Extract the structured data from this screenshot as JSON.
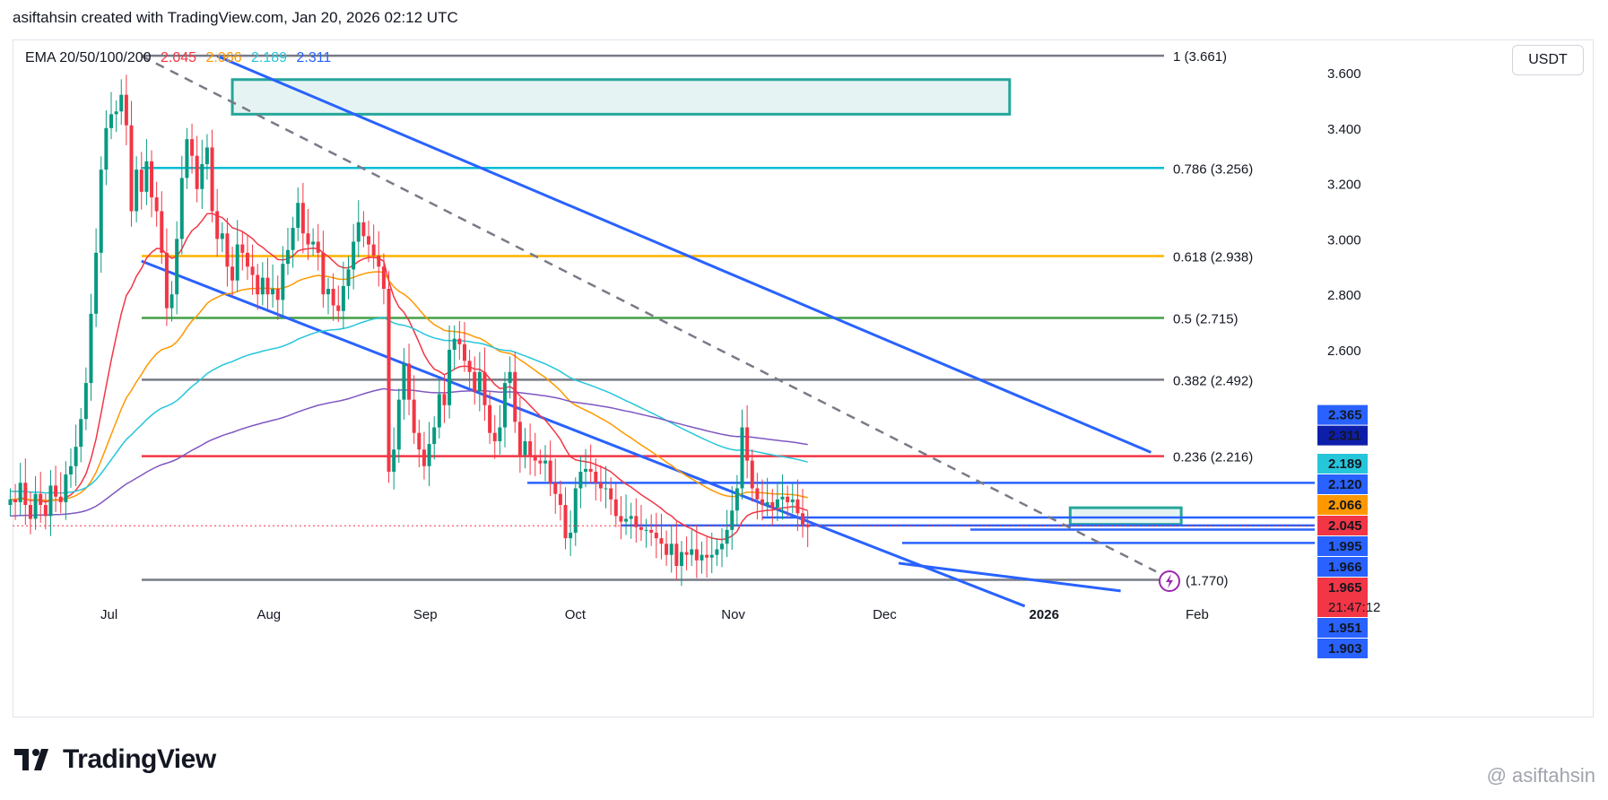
{
  "header": {
    "attribution": "asiftahsin created with TradingView.com, Jan 20, 2026 02:12 UTC"
  },
  "legend": {
    "label": "EMA 20/50/100/200",
    "values": [
      {
        "text": "2.045",
        "color": "#f23645"
      },
      {
        "text": "2.066",
        "color": "#ff9800"
      },
      {
        "text": "2.189",
        "color": "#26c6da"
      },
      {
        "text": "2.311",
        "color": "#2962ff"
      }
    ]
  },
  "currency": "USDT",
  "branding": {
    "logo_text": "TradingView",
    "watermark": "@ asiftahsin"
  },
  "chart_data": {
    "type": "candlestick",
    "ylim": [
      1.7,
      3.72
    ],
    "y_ticks": [
      2.6,
      2.8,
      3.0,
      3.2,
      3.4,
      3.6
    ],
    "x_tick_labels": [
      {
        "label": "Jul",
        "day": 0
      },
      {
        "label": "Aug",
        "day": 31
      },
      {
        "label": "Sep",
        "day": 62
      },
      {
        "label": "Oct",
        "day": 92
      },
      {
        "label": "Nov",
        "day": 123
      },
      {
        "label": "Dec",
        "day": 153
      },
      {
        "label": "2026",
        "day": 184
      },
      {
        "label": "Feb",
        "day": 215
      }
    ],
    "fib_levels": [
      {
        "ratio": "1",
        "value": 3.661,
        "text": "1 (3.661)",
        "color": "#787b86"
      },
      {
        "ratio": "0.786",
        "value": 3.256,
        "text": "0.786 (3.256)",
        "color": "#00bcd4"
      },
      {
        "ratio": "0.618",
        "value": 2.938,
        "text": "0.618 (2.938)",
        "color": "#ffb300"
      },
      {
        "ratio": "0.5",
        "value": 2.715,
        "text": "0.5 (2.715)",
        "color": "#43a047"
      },
      {
        "ratio": "0.382",
        "value": 2.492,
        "text": "0.382 (2.492)",
        "color": "#787b86"
      },
      {
        "ratio": "0.236",
        "value": 2.216,
        "text": "0.236 (2.216)",
        "color": "#f23645"
      },
      {
        "ratio": "0",
        "value": 1.77,
        "text": "(1.770)",
        "color": "#787b86"
      }
    ],
    "price_badges": [
      {
        "text": "2.365",
        "value": 2.365,
        "color": "#2962ff"
      },
      {
        "text": "2.311",
        "value": 2.311,
        "color": "#0d1eab"
      },
      {
        "text": "2.189",
        "value": 2.189,
        "color": "#26c6da"
      },
      {
        "text": "2.120",
        "value": 2.12,
        "color": "#2962ff"
      },
      {
        "text": "2.066",
        "value": 2.066,
        "color": "#ff9800"
      },
      {
        "text": "2.045",
        "value": 2.045,
        "color": "#f23645"
      },
      {
        "text": "1.995",
        "value": 1.995,
        "color": "#2962ff"
      },
      {
        "text": "1.966",
        "value": 1.966,
        "color": "#2962ff"
      },
      {
        "text": "1.965",
        "value": 1.965,
        "color": "#f23645",
        "sub": "21:47:12"
      },
      {
        "text": "1.951",
        "value": 1.951,
        "color": "#2962ff"
      },
      {
        "text": "1.903",
        "value": 1.903,
        "color": "#2962ff"
      }
    ],
    "support_lines": [
      2.12,
      1.995,
      1.966,
      1.951,
      1.903
    ],
    "zones": [
      {
        "day_start": 24,
        "day_end": 178,
        "low": 3.45,
        "high": 3.575
      },
      {
        "day_start": 190,
        "day_end": 212,
        "low": 1.97,
        "high": 2.03
      }
    ],
    "channel_lines": [
      {
        "from": [
          15,
          3.66
        ],
        "to": [
          206,
          2.23
        ],
        "color": "#2962ff"
      },
      {
        "from": [
          0,
          2.92
        ],
        "to": [
          181,
          1.675
        ],
        "color": "#2962ff"
      },
      {
        "from": [
          150,
          1.83
        ],
        "to": [
          200,
          1.73
        ],
        "color": "#2962ff"
      },
      {
        "from": [
          0,
          3.66
        ],
        "to": [
          207,
          1.8
        ],
        "color": "#787b86",
        "dashed": true
      }
    ],
    "candles_close": [
      2.06,
      2.05,
      2.12,
      2.04,
      1.99,
      2.08,
      2.04,
      2.0,
      2.11,
      2.07,
      2.05,
      2.15,
      2.18,
      2.25,
      2.35,
      2.48,
      2.73,
      2.95,
      3.25,
      3.4,
      3.45,
      3.46,
      3.52,
      3.41,
      3.1,
      3.25,
      3.17,
      3.28,
      3.15,
      3.1,
      2.95,
      2.75,
      2.8,
      3.0,
      3.22,
      3.36,
      3.3,
      3.18,
      3.27,
      3.33,
      3.1,
      3.0,
      3.02,
      2.9,
      2.85,
      2.98,
      2.95,
      2.9,
      2.87,
      2.8,
      2.86,
      2.8,
      2.82,
      2.78,
      2.91,
      2.96,
      3.04,
      3.13,
      3.02,
      2.98,
      2.99,
      2.95,
      2.8,
      2.82,
      2.76,
      2.74,
      2.83,
      2.89,
      2.99,
      3.06,
      3.01,
      2.98,
      2.94,
      2.9,
      2.82,
      2.16,
      2.24,
      2.42,
      2.55,
      2.42,
      2.3,
      2.24,
      2.18,
      2.26,
      2.32,
      2.44,
      2.4,
      2.6,
      2.64,
      2.62,
      2.56,
      2.52,
      2.45,
      2.52,
      2.4,
      2.3,
      2.27,
      2.32,
      2.48,
      2.52,
      2.34,
      2.22,
      2.27,
      2.22,
      2.2,
      2.19,
      2.2,
      2.12,
      2.08,
      2.04,
      1.92,
      1.94,
      2.1,
      2.16,
      2.17,
      2.16,
      2.12,
      2.1,
      2.1,
      2.06,
      2.0,
      1.98,
      1.99,
      2.0,
      1.96,
      1.95,
      1.95,
      1.94,
      1.92,
      1.9,
      1.86,
      1.9,
      1.82,
      1.87,
      1.86,
      1.88,
      1.84,
      1.86,
      1.85,
      1.86,
      1.88,
      1.9,
      1.95,
      2.02,
      2.1,
      2.32,
      2.2,
      2.1,
      2.06,
      2.04,
      2.05,
      2.03,
      2.06,
      2.07,
      2.05,
      2.06,
      2.01,
      1.97,
      1.96
    ]
  }
}
